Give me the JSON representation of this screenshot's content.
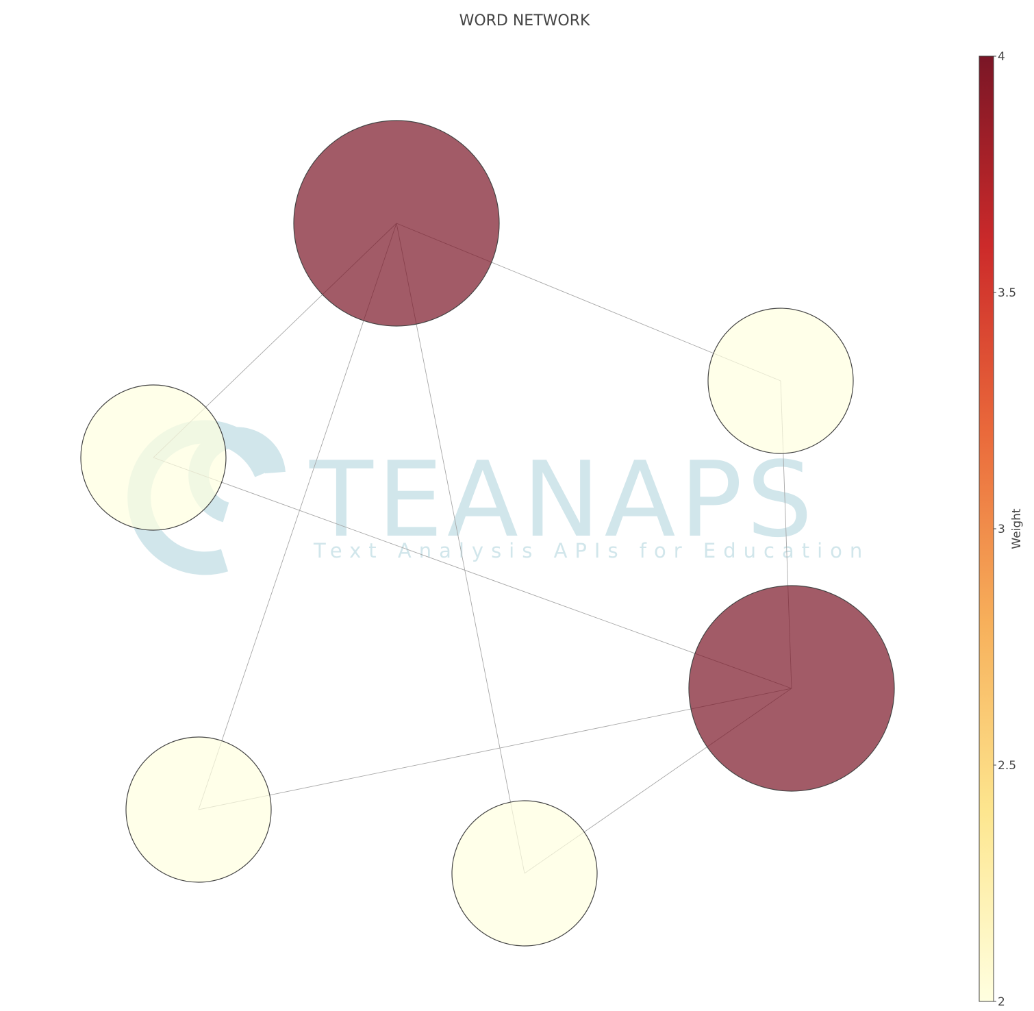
{
  "chart_data": {
    "type": "network",
    "title": "WORD NETWORK",
    "nodes": [
      {
        "id": 1,
        "weight": 4
      },
      {
        "id": 2,
        "weight": 2
      },
      {
        "id": 3,
        "weight": 2
      },
      {
        "id": 4,
        "weight": 4
      },
      {
        "id": 5,
        "weight": 2
      },
      {
        "id": 6,
        "weight": 2
      }
    ],
    "edges": [
      [
        1,
        2
      ],
      [
        1,
        3
      ],
      [
        1,
        5
      ],
      [
        1,
        6
      ],
      [
        4,
        2
      ],
      [
        4,
        3
      ],
      [
        4,
        5
      ],
      [
        4,
        6
      ]
    ],
    "colorbar": {
      "title": "Weight",
      "range": [
        2,
        4
      ],
      "ticks": [
        "2",
        "2.5",
        "3",
        "3.5",
        "4"
      ],
      "colors": [
        "#ffffe0",
        "#fde68f",
        "#f7b05b",
        "#ea6a3b",
        "#cc2a2a",
        "#7a1626"
      ]
    },
    "node_opacity": 0.7,
    "legend": "none",
    "grid": false
  },
  "watermark": {
    "logo_text": "TEANAPS",
    "logo_tagline": "Text Analysis APIs for Education"
  }
}
